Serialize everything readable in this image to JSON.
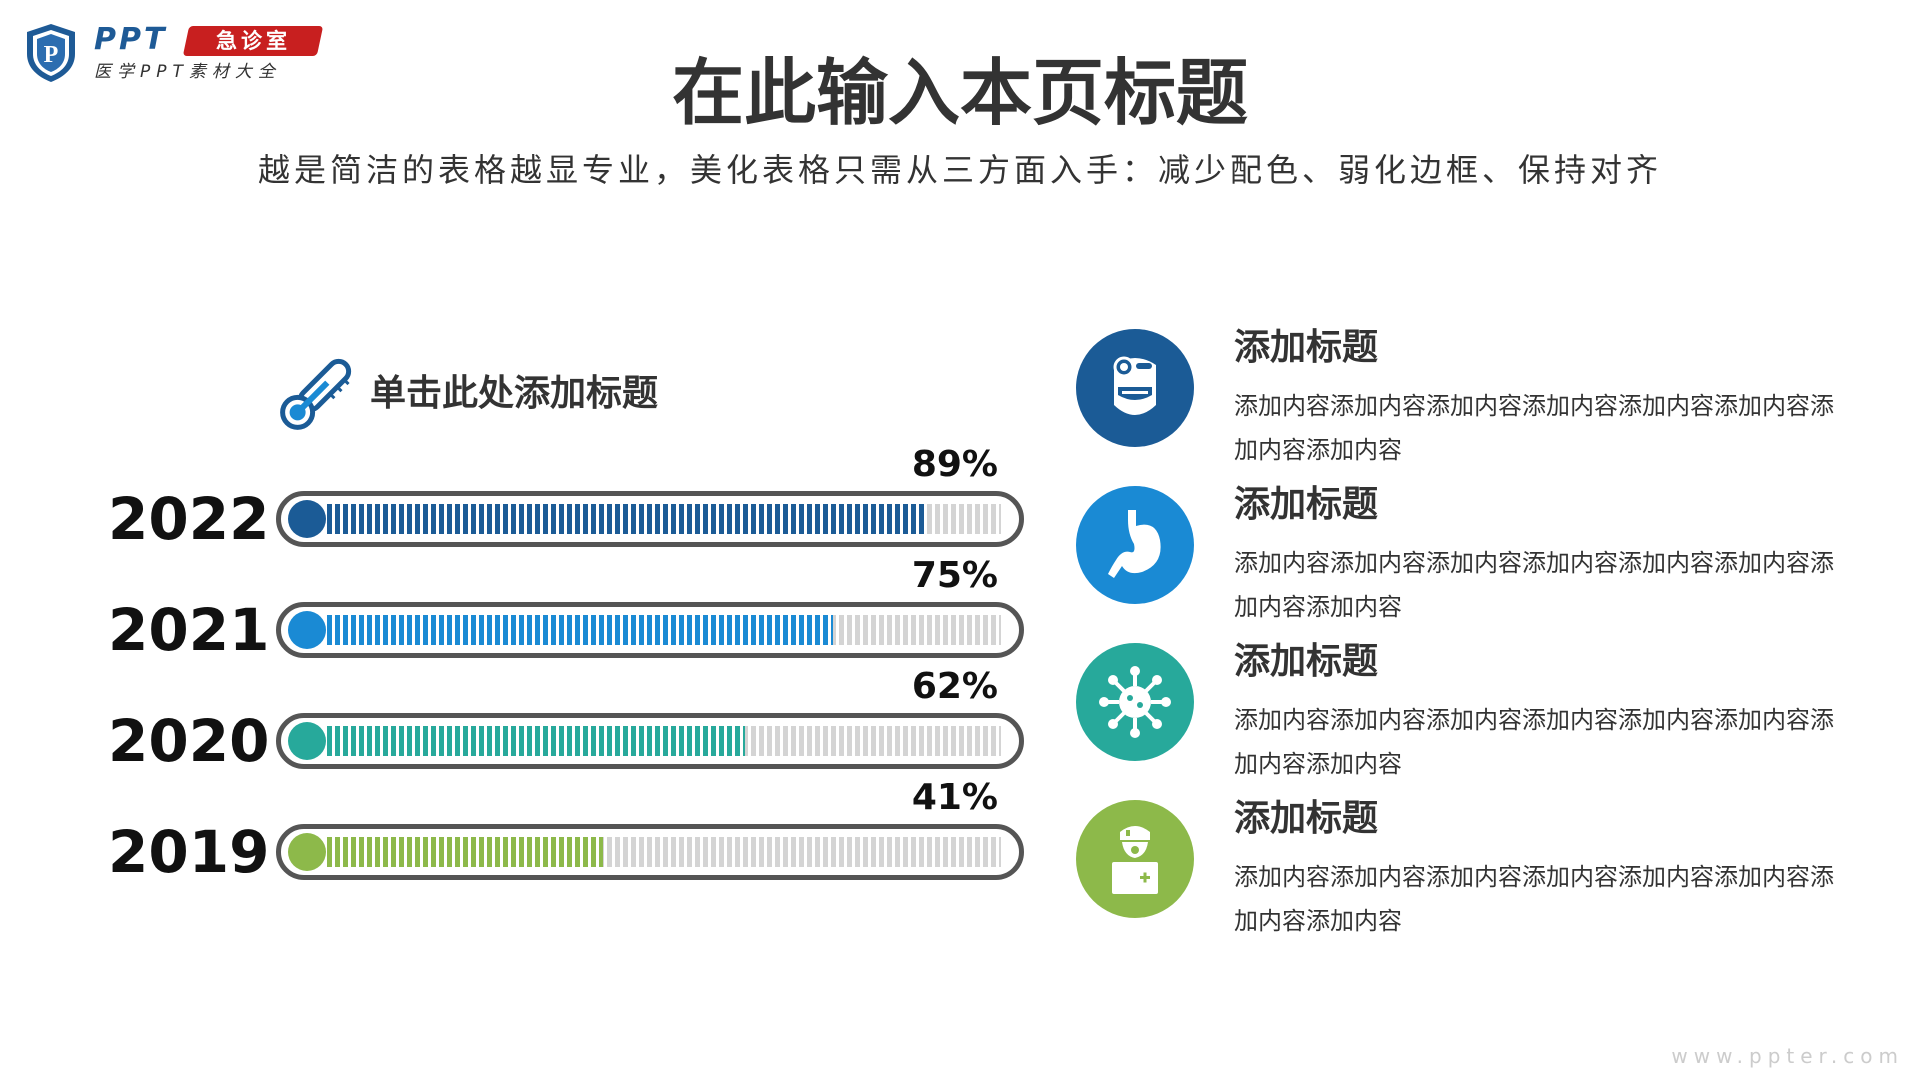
{
  "logo": {
    "brand_en": "PPT",
    "brand_badge": "急诊室",
    "brand_sub": "医学PPT素材大全",
    "shield_letter": "P"
  },
  "title": "在此输入本页标题",
  "subtitle": "越是简洁的表格越显专业，美化表格只需从三方面入手：减少配色、弱化边框、保持对齐",
  "section_title": "单击此处添加标题",
  "bars": [
    {
      "year": "2022",
      "percent_label": "89%",
      "value": 0.89,
      "color": "#1b5b96"
    },
    {
      "year": "2021",
      "percent_label": "75%",
      "value": 0.75,
      "color": "#1a8ad4"
    },
    {
      "year": "2020",
      "percent_label": "62%",
      "value": 0.62,
      "color": "#27a99b"
    },
    {
      "year": "2019",
      "percent_label": "41%",
      "value": 0.41,
      "color": "#8db94a"
    }
  ],
  "items": [
    {
      "title": "添加标题",
      "desc": "添加内容添加内容添加内容添加内容添加内容添加内容添加内容添加内容",
      "icon": "doctor-icon",
      "color": "#1b5b96"
    },
    {
      "title": "添加标题",
      "desc": "添加内容添加内容添加内容添加内容添加内容添加内容添加内容添加内容",
      "icon": "stomach-icon",
      "color": "#1a8ad4"
    },
    {
      "title": "添加标题",
      "desc": "添加内容添加内容添加内容添加内容添加内容添加内容添加内容添加内容",
      "icon": "virus-icon",
      "color": "#27a99b"
    },
    {
      "title": "添加标题",
      "desc": "添加内容添加内容添加内容添加内容添加内容添加内容添加内容添加内容",
      "icon": "nurse-icon",
      "color": "#8db94a"
    }
  ],
  "watermark": "www.ppter.com"
}
